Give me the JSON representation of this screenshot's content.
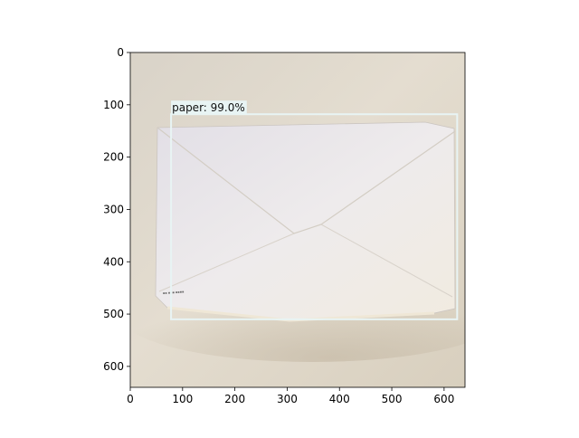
{
  "detection": {
    "label": "paper: 99.0%",
    "box_color": "#e8f4f4",
    "box": {
      "x_min": 78,
      "y_min": 118,
      "x_max": 625,
      "y_max": 510
    }
  },
  "axes": {
    "xlim": [
      0,
      640
    ],
    "ylim": [
      640,
      0
    ],
    "x_ticks": [
      0,
      100,
      200,
      300,
      400,
      500,
      600
    ],
    "y_ticks": [
      0,
      100,
      200,
      300,
      400,
      500,
      600
    ]
  },
  "colors": {
    "background_wall": "#ddd6c9",
    "envelope": "#ece9ec",
    "envelope_shadow": "#cfc6b8"
  }
}
